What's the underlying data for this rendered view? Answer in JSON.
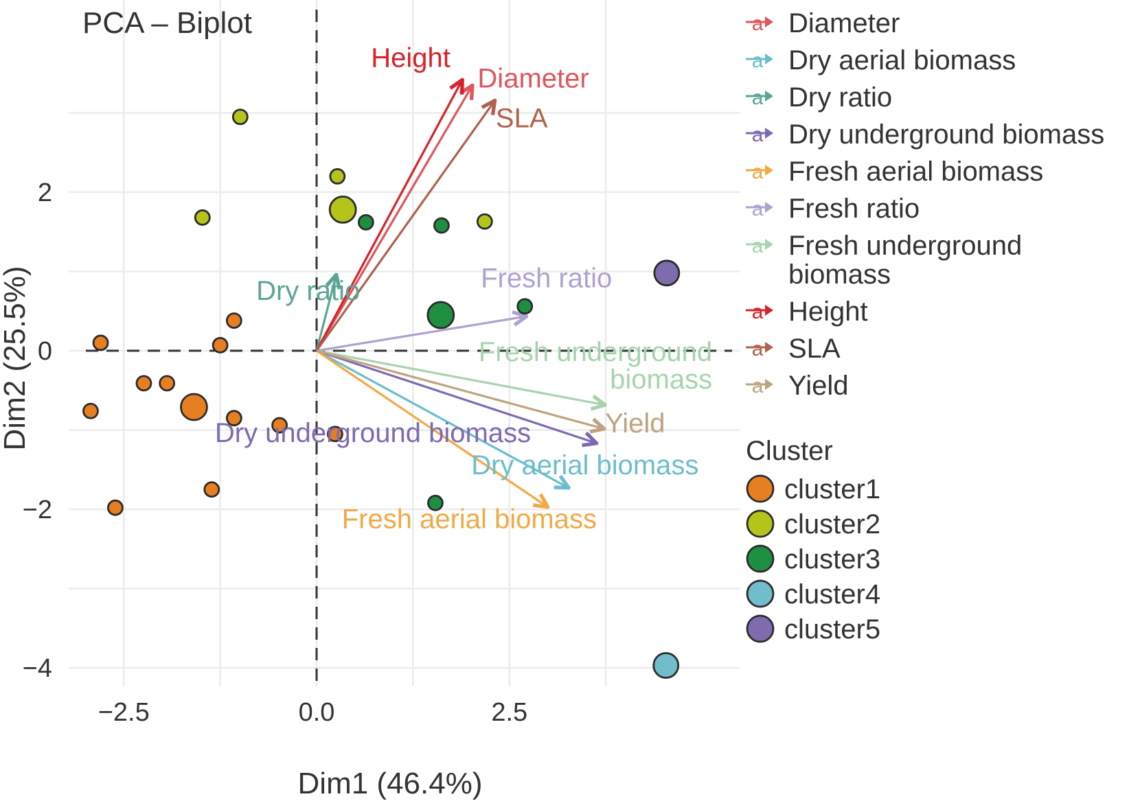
{
  "chart_data": {
    "type": "scatter",
    "title": "PCA – Biplot",
    "xlabel": "Dim1 (46.4%)",
    "ylabel": "Dim2 (25.5%)",
    "xlim": [
      -3.2,
      5.5
    ],
    "ylim": [
      -4.2,
      4.4
    ],
    "grid": true,
    "x_ticks": [
      {
        "value": -2.5,
        "label": "−2.5"
      },
      {
        "value": 0.0,
        "label": "0.0"
      },
      {
        "value": 2.5,
        "label": "2.5"
      }
    ],
    "x_minor_gridlines": [
      -1.25,
      1.25,
      3.75
    ],
    "y_ticks": [
      {
        "value": 2,
        "label": "2"
      },
      {
        "value": 0,
        "label": "0"
      },
      {
        "value": -2,
        "label": "−2"
      },
      {
        "value": -4,
        "label": "−4"
      }
    ],
    "y_minor_gridlines": [
      3,
      1,
      -1,
      -3
    ],
    "reference_lines": {
      "x": 0,
      "y": 0,
      "style": "dashed"
    },
    "clusters": [
      {
        "name": "cluster1",
        "color": "#E67E22"
      },
      {
        "name": "cluster2",
        "color": "#B5C41A"
      },
      {
        "name": "cluster3",
        "color": "#1E8E40"
      },
      {
        "name": "cluster4",
        "color": "#72BDCB"
      },
      {
        "name": "cluster5",
        "color": "#7F6CAE"
      }
    ],
    "individuals": [
      {
        "x": -2.8,
        "y": 0.1,
        "cluster": "cluster1",
        "centroid": false
      },
      {
        "x": -1.07,
        "y": 0.38,
        "cluster": "cluster1",
        "centroid": false
      },
      {
        "x": -1.25,
        "y": 0.07,
        "cluster": "cluster1",
        "centroid": false
      },
      {
        "x": -2.24,
        "y": -0.41,
        "cluster": "cluster1",
        "centroid": false
      },
      {
        "x": -1.94,
        "y": -0.41,
        "cluster": "cluster1",
        "centroid": false
      },
      {
        "x": -1.59,
        "y": -0.71,
        "cluster": "cluster1",
        "centroid": true
      },
      {
        "x": -2.93,
        "y": -0.76,
        "cluster": "cluster1",
        "centroid": false
      },
      {
        "x": -1.07,
        "y": -0.85,
        "cluster": "cluster1",
        "centroid": false
      },
      {
        "x": -0.48,
        "y": -0.94,
        "cluster": "cluster1",
        "centroid": false
      },
      {
        "x": 0.24,
        "y": -1.05,
        "cluster": "cluster1",
        "centroid": false
      },
      {
        "x": -1.36,
        "y": -1.75,
        "cluster": "cluster1",
        "centroid": false
      },
      {
        "x": -2.61,
        "y": -1.98,
        "cluster": "cluster1",
        "centroid": false
      },
      {
        "x": -0.99,
        "y": 2.95,
        "cluster": "cluster2",
        "centroid": false
      },
      {
        "x": -1.48,
        "y": 1.68,
        "cluster": "cluster2",
        "centroid": false
      },
      {
        "x": 0.27,
        "y": 2.2,
        "cluster": "cluster2",
        "centroid": false
      },
      {
        "x": 0.34,
        "y": 1.78,
        "cluster": "cluster2",
        "centroid": true
      },
      {
        "x": 2.18,
        "y": 1.63,
        "cluster": "cluster2",
        "centroid": false
      },
      {
        "x": 0.64,
        "y": 1.62,
        "cluster": "cluster3",
        "centroid": false
      },
      {
        "x": 1.62,
        "y": 1.58,
        "cluster": "cluster3",
        "centroid": false
      },
      {
        "x": 1.61,
        "y": 0.45,
        "cluster": "cluster3",
        "centroid": true
      },
      {
        "x": 2.7,
        "y": 0.56,
        "cluster": "cluster3",
        "centroid": false
      },
      {
        "x": 1.54,
        "y": -1.92,
        "cluster": "cluster3",
        "centroid": false
      },
      {
        "x": 4.53,
        "y": -3.97,
        "cluster": "cluster4",
        "centroid": true
      },
      {
        "x": 4.54,
        "y": 0.98,
        "cluster": "cluster5",
        "centroid": true
      }
    ],
    "variables": [
      {
        "name": "Diameter",
        "color": "#E0555E",
        "x": 2.01,
        "y": 3.33,
        "label": [
          "Diameter"
        ],
        "label_pos": {
          "x": 2.81,
          "y": 3.32
        },
        "anchor": "middle"
      },
      {
        "name": "Dry aerial biomass",
        "color": "#6CBDCD",
        "x": 3.25,
        "y": -1.72,
        "label": [
          "Dry aerial biomass"
        ],
        "label_pos": {
          "x": 3.48,
          "y": -1.56
        },
        "anchor": "middle"
      },
      {
        "name": "Dry ratio",
        "color": "#5BA595",
        "x": 0.25,
        "y": 0.94,
        "label": [
          "Dry ratio"
        ],
        "label_pos": {
          "x": -0.11,
          "y": 0.64
        },
        "anchor": "middle"
      },
      {
        "name": "Dry underground biomass",
        "color": "#7D6AB3",
        "x": 3.61,
        "y": -1.16,
        "label": [
          "Dry underground biomass"
        ],
        "label_pos": {
          "x": 0.73,
          "y": -1.15
        },
        "anchor": "middle"
      },
      {
        "name": "Fresh aerial biomass",
        "color": "#F0A945",
        "x": 2.98,
        "y": -1.96,
        "label": [
          "Fresh aerial biomass"
        ],
        "label_pos": {
          "x": 1.98,
          "y": -2.24
        },
        "anchor": "middle"
      },
      {
        "name": "Fresh ratio",
        "color": "#AEA2D0",
        "x": 2.7,
        "y": 0.43,
        "label": [
          "Fresh ratio"
        ],
        "label_pos": {
          "x": 2.98,
          "y": 0.8
        },
        "anchor": "middle"
      },
      {
        "name": "Fresh underground biomass",
        "color": "#A8D3AE",
        "x": 3.72,
        "y": -0.68,
        "label": [
          "Fresh underground",
          "biomass"
        ],
        "label_pos": {
          "x": 5.13,
          "y": -0.13
        },
        "anchor": "end"
      },
      {
        "name": "Height",
        "color": "#D92128",
        "x": 1.88,
        "y": 3.4,
        "label": [
          "Height"
        ],
        "label_pos": {
          "x": 1.22,
          "y": 3.58
        },
        "anchor": "middle"
      },
      {
        "name": "SLA",
        "color": "#B0614E",
        "x": 2.3,
        "y": 3.14,
        "label": [
          "SLA"
        ],
        "label_pos": {
          "x": 2.66,
          "y": 2.82
        },
        "anchor": "middle"
      },
      {
        "name": "Yield",
        "color": "#BFA37F",
        "x": 3.71,
        "y": -0.98,
        "label": [
          "Yield"
        ],
        "label_pos": {
          "x": 4.13,
          "y": -1.03
        },
        "anchor": "middle"
      }
    ],
    "legend": {
      "placement": "right",
      "variables_title": "",
      "variables": [
        "Diameter",
        "Dry aerial biomass",
        "Dry ratio",
        "Dry underground biomass",
        "Fresh aerial biomass",
        "Fresh ratio",
        [
          "Fresh underground",
          "biomass"
        ],
        "Height",
        "SLA",
        "Yield"
      ],
      "variable_key_glyph": "a",
      "cluster_title": "Cluster",
      "clusters": [
        "cluster1",
        "cluster2",
        "cluster3",
        "cluster4",
        "cluster5"
      ]
    }
  }
}
